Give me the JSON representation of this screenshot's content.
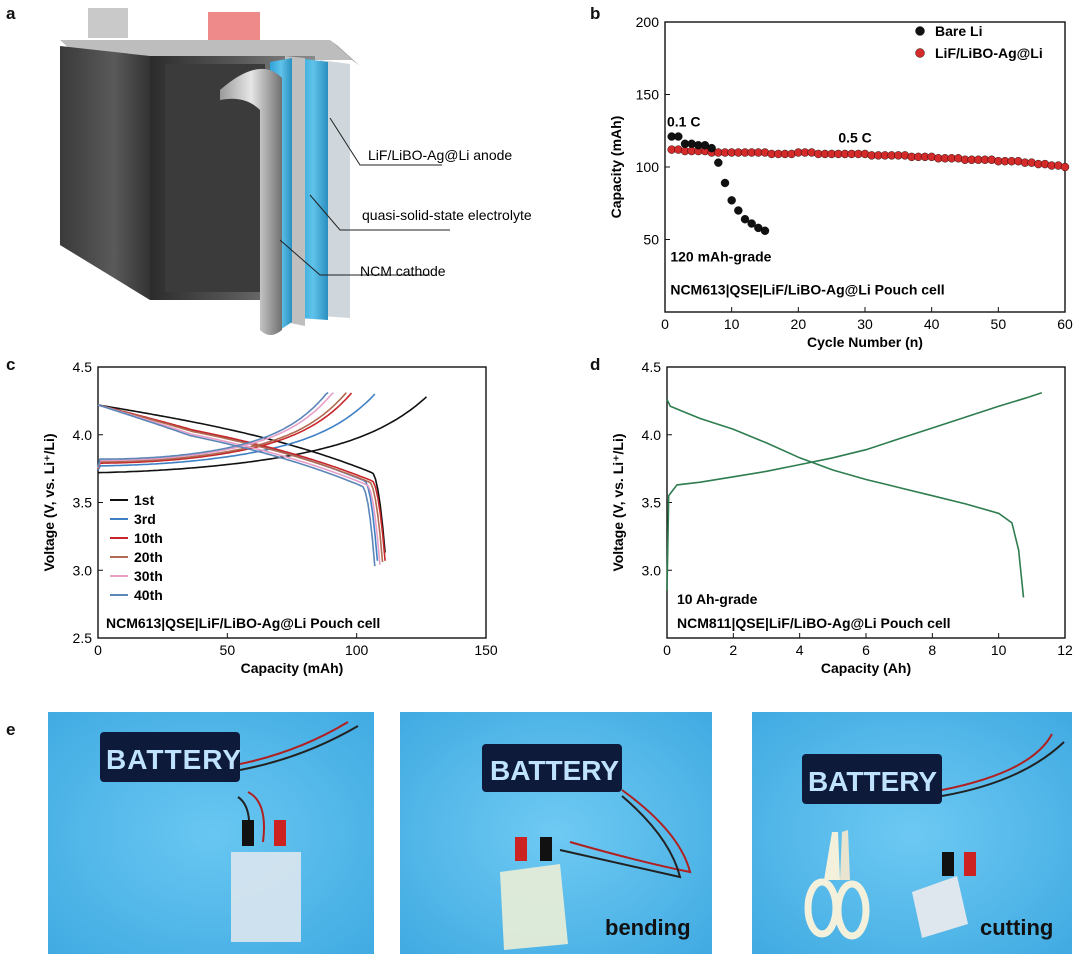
{
  "panels": {
    "a": {
      "letter": "a",
      "labels": {
        "anode": "LiF/LiBO-Ag@Li anode",
        "electrolyte": "quasi-solid-state electrolyte",
        "cathode": "NCM cathode"
      }
    },
    "b": {
      "letter": "b"
    },
    "c": {
      "letter": "c"
    },
    "d": {
      "letter": "d"
    },
    "e": {
      "letter": "e",
      "led_text": "BATTERY",
      "captions": [
        "",
        "bending",
        "cutting"
      ]
    }
  },
  "chart_data": [
    {
      "panel": "b",
      "type": "scatter",
      "xlabel": "Cycle Number (n)",
      "ylabel": "Capacity (mAh)",
      "xlim": [
        0,
        60
      ],
      "ylim": [
        0,
        200
      ],
      "xticks": [
        0,
        10,
        20,
        30,
        40,
        50,
        60
      ],
      "yticks": [
        50,
        100,
        150,
        200
      ],
      "legend_position": "top-right",
      "annotations": [
        "0.1 C",
        "0.5 C",
        "120 mAh-grade",
        "NCM613|QSE|LiF/LiBO-Ag@Li Pouch cell"
      ],
      "series": [
        {
          "name": "Bare Li",
          "color": "#111111",
          "x": [
            1,
            2,
            3,
            4,
            5,
            6,
            7,
            8,
            9,
            10,
            11,
            12,
            13,
            14,
            15
          ],
          "y": [
            121,
            121,
            116,
            116,
            115,
            115,
            113,
            103,
            89,
            77,
            70,
            64,
            61,
            58,
            56
          ]
        },
        {
          "name": "LiF/LiBO-Ag@Li",
          "color": "#d42a2a",
          "x": [
            1,
            2,
            3,
            4,
            5,
            6,
            7,
            8,
            9,
            10,
            11,
            12,
            13,
            14,
            15,
            16,
            17,
            18,
            19,
            20,
            21,
            22,
            23,
            24,
            25,
            26,
            27,
            28,
            29,
            30,
            31,
            32,
            33,
            34,
            35,
            36,
            37,
            38,
            39,
            40,
            41,
            42,
            43,
            44,
            45,
            46,
            47,
            48,
            49,
            50,
            51,
            52,
            53,
            54,
            55,
            56,
            57,
            58,
            59,
            60
          ],
          "y": [
            112,
            112,
            111,
            111,
            111,
            111,
            110,
            110,
            110,
            110,
            110,
            110,
            110,
            110,
            110,
            109,
            109,
            109,
            109,
            110,
            110,
            110,
            109,
            109,
            109,
            109,
            109,
            109,
            109,
            109,
            108,
            108,
            108,
            108,
            108,
            108,
            107,
            107,
            107,
            107,
            106,
            106,
            106,
            106,
            105,
            105,
            105,
            105,
            105,
            104,
            104,
            104,
            104,
            103,
            103,
            102,
            102,
            101,
            101,
            100
          ]
        }
      ]
    },
    {
      "panel": "c",
      "type": "line",
      "xlabel": "Capacity (mAh)",
      "ylabel": "Voltage (V, vs. Li⁺/Li)",
      "xlim": [
        0,
        150
      ],
      "ylim": [
        2.5,
        4.5
      ],
      "xticks": [
        0,
        50,
        100,
        150
      ],
      "yticks": [
        2.5,
        3.0,
        3.5,
        4.0,
        4.5
      ],
      "legend_position": "bottom-left",
      "annotations": [
        "NCM613|QSE|LiF/LiBO-Ag@Li Pouch cell"
      ],
      "series": [
        {
          "name": "1st",
          "color": "#111111",
          "charge_end": 127,
          "discharge_end": 111,
          "c_shift": 0.0,
          "d_shift": 0.0
        },
        {
          "name": "3rd",
          "color": "#3f7fc4",
          "charge_end": 107,
          "discharge_end": 108,
          "c_shift": 0.05,
          "d_shift": -0.06
        },
        {
          "name": "10th",
          "color": "#c8262a",
          "charge_end": 98,
          "discharge_end": 111,
          "c_shift": 0.07,
          "d_shift": -0.06
        },
        {
          "name": "20th",
          "color": "#b06a50",
          "charge_end": 96,
          "discharge_end": 110,
          "c_shift": 0.08,
          "d_shift": -0.07
        },
        {
          "name": "30th",
          "color": "#e79fc8",
          "charge_end": 91,
          "discharge_end": 109,
          "c_shift": 0.09,
          "d_shift": -0.09
        },
        {
          "name": "40th",
          "color": "#5b86b8",
          "charge_end": 89,
          "discharge_end": 107,
          "c_shift": 0.1,
          "d_shift": -0.1
        }
      ]
    },
    {
      "panel": "d",
      "type": "line",
      "xlabel": "Capacity (Ah)",
      "ylabel": "Voltage (V, vs. Li⁺/Li)",
      "xlim": [
        0,
        12
      ],
      "ylim": [
        2.5,
        4.5
      ],
      "xticks": [
        0,
        2,
        4,
        6,
        8,
        10,
        12
      ],
      "yticks": [
        3.0,
        3.5,
        4.0,
        4.5
      ],
      "annotations": [
        "10 Ah-grade",
        "NCM811|QSE|LiF/LiBO-Ag@Li Pouch cell"
      ],
      "series": [
        {
          "name": "",
          "color": "#2e7d4f",
          "charge_x": [
            0,
            0.05,
            0.3,
            1,
            2,
            3,
            4,
            5,
            6,
            7,
            8,
            9,
            10,
            10.8,
            11.3
          ],
          "charge_y": [
            2.85,
            3.55,
            3.63,
            3.65,
            3.69,
            3.73,
            3.78,
            3.83,
            3.89,
            3.97,
            4.05,
            4.13,
            4.21,
            4.27,
            4.31
          ],
          "discharge_x": [
            0,
            0.1,
            0.5,
            1,
            2,
            3,
            4,
            5,
            6,
            7,
            8,
            9,
            10,
            10.4,
            10.6,
            10.75
          ],
          "discharge_y": [
            4.26,
            4.21,
            4.17,
            4.12,
            4.04,
            3.94,
            3.83,
            3.74,
            3.67,
            3.61,
            3.55,
            3.49,
            3.42,
            3.35,
            3.15,
            2.8
          ]
        }
      ]
    }
  ]
}
